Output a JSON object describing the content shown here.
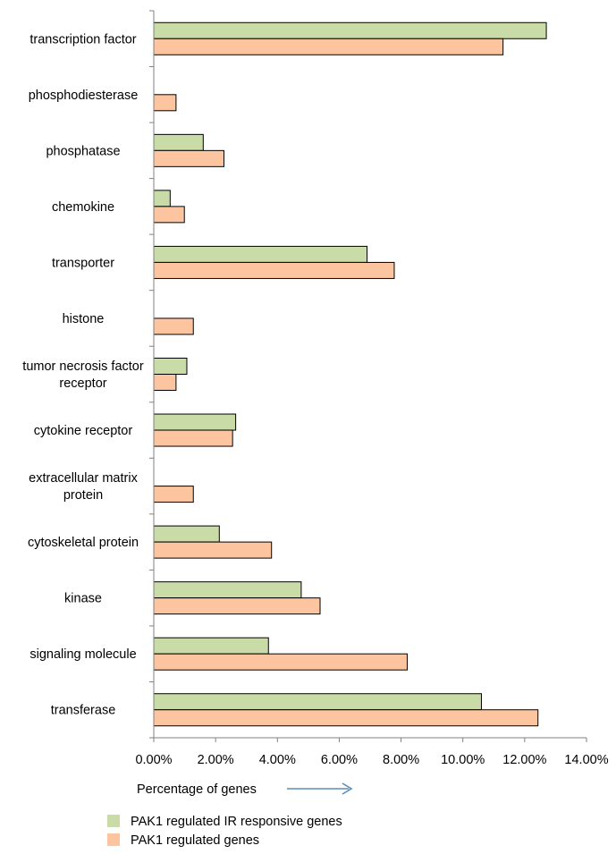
{
  "chart_data": {
    "type": "bar",
    "orientation": "horizontal",
    "title": "",
    "xlabel": "Percentage of genes",
    "ylabel": "",
    "xlim": [
      0,
      14
    ],
    "x_ticks": [
      "0.00%",
      "2.00%",
      "4.00%",
      "6.00%",
      "8.00%",
      "10.00%",
      "12.00%",
      "14.00%"
    ],
    "grid": false,
    "legend_position": "bottom",
    "categories": [
      [
        "transcription factor"
      ],
      [
        "phosphodiesterase"
      ],
      [
        "phosphatase"
      ],
      [
        "chemokine"
      ],
      [
        "transporter"
      ],
      [
        "histone"
      ],
      [
        "tumor necrosis factor",
        "receptor"
      ],
      [
        "cytokine receptor"
      ],
      [
        "extracellular matrix",
        "protein"
      ],
      [
        "cytoskeletal protein"
      ],
      [
        "kinase"
      ],
      [
        "signaling molecule"
      ],
      [
        "transferase"
      ]
    ],
    "series": [
      {
        "name": "PAK1 regulated IR responsive genes",
        "color": "#c9dba7",
        "values": [
          12.7,
          0,
          1.6,
          0.53,
          6.9,
          0,
          1.07,
          2.65,
          0,
          2.12,
          4.77,
          3.71,
          10.6
        ]
      },
      {
        "name": "PAK1 regulated genes",
        "color": "#fcc59f",
        "values": [
          11.3,
          0.72,
          2.27,
          0.99,
          7.78,
          1.28,
          0.72,
          2.55,
          1.28,
          3.81,
          5.38,
          8.2,
          12.43
        ]
      }
    ]
  }
}
